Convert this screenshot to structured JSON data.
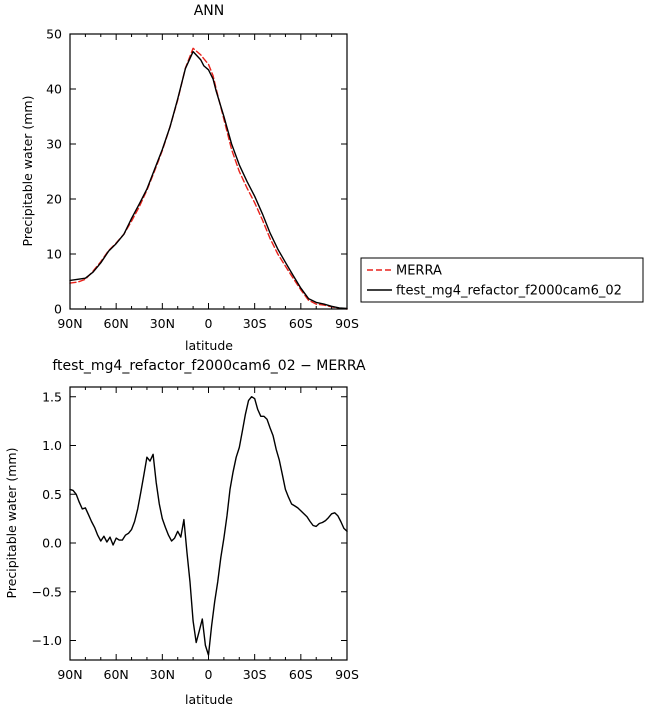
{
  "chart_data": [
    {
      "type": "line",
      "title": "ANN",
      "xlabel": "latitude",
      "ylabel": "Precipitable water (mm)",
      "x_direction": "north-to-south",
      "x_tick_labels": [
        "90N",
        "60N",
        "30N",
        "0",
        "30S",
        "60S",
        "90S"
      ],
      "x_tick_values": [
        90,
        60,
        30,
        0,
        -30,
        -60,
        -90
      ],
      "xlim": [
        90,
        -90
      ],
      "ylim": [
        0,
        50
      ],
      "y_tick_values": [
        0,
        10,
        20,
        30,
        40,
        50
      ],
      "grid": false,
      "legend_position": "right",
      "series": [
        {
          "name": "MERRA",
          "color": "#e8221b",
          "dash": "dashed",
          "x": [
            90,
            85,
            80,
            75,
            70,
            65,
            60,
            55,
            50,
            45,
            40,
            35,
            30,
            25,
            20,
            15,
            10,
            5,
            3,
            0,
            -3,
            -5,
            -10,
            -15,
            -20,
            -25,
            -30,
            -35,
            -40,
            -45,
            -50,
            -55,
            -60,
            -65,
            -70,
            -75,
            -80,
            -85,
            -90
          ],
          "y": [
            4.7,
            4.9,
            5.4,
            6.9,
            8.6,
            10.6,
            12.0,
            13.6,
            16.0,
            18.6,
            21.6,
            25.1,
            28.8,
            33.1,
            38.0,
            43.8,
            47.4,
            46.2,
            45.5,
            44.5,
            42.4,
            40.0,
            34.5,
            29.0,
            25.0,
            22.0,
            19.3,
            16.2,
            12.8,
            10.0,
            7.8,
            5.6,
            3.5,
            1.6,
            0.9,
            0.7,
            0.4,
            0.1,
            0.0
          ]
        },
        {
          "name": "ftest_mg4_refactor_f2000cam6_02",
          "color": "#000000",
          "dash": "solid",
          "x": [
            90,
            85,
            80,
            75,
            70,
            65,
            60,
            55,
            50,
            45,
            40,
            35,
            30,
            25,
            20,
            15,
            10,
            5,
            3,
            0,
            -3,
            -5,
            -10,
            -15,
            -20,
            -25,
            -30,
            -35,
            -40,
            -45,
            -50,
            -55,
            -60,
            -65,
            -70,
            -75,
            -80,
            -85,
            -90
          ],
          "y": [
            5.2,
            5.4,
            5.6,
            6.7,
            8.4,
            10.5,
            11.9,
            13.6,
            16.5,
            19.1,
            21.8,
            25.4,
            29.0,
            33.1,
            38.2,
            43.7,
            46.8,
            45.3,
            44.2,
            43.5,
            41.8,
            39.6,
            35.0,
            30.0,
            26.2,
            23.2,
            20.5,
            17.3,
            13.8,
            10.9,
            8.5,
            6.1,
            3.8,
            1.9,
            1.2,
            0.9,
            0.5,
            0.2,
            0.1
          ]
        }
      ]
    },
    {
      "type": "line",
      "title": "ftest_mg4_refactor_f2000cam6_02 − MERRA",
      "xlabel": "latitude",
      "ylabel": "Precipitable water (mm)",
      "x_direction": "north-to-south",
      "x_tick_labels": [
        "90N",
        "60N",
        "30N",
        "0",
        "30S",
        "60S",
        "90S"
      ],
      "x_tick_values": [
        90,
        60,
        30,
        0,
        -30,
        -60,
        -90
      ],
      "xlim": [
        90,
        -90
      ],
      "ylim": [
        -1.2,
        1.6
      ],
      "y_tick_values": [
        -1.0,
        -0.5,
        0.0,
        0.5,
        1.0,
        1.5
      ],
      "y_tick_labels": [
        "−1.0",
        "−0.5",
        "0.0",
        "0.5",
        "1.0",
        "1.5"
      ],
      "grid": false,
      "series": [
        {
          "color": "#000000",
          "dash": "solid",
          "x": [
            90,
            88,
            86,
            84,
            82,
            80,
            78,
            76,
            74,
            72,
            70,
            68,
            66,
            64,
            62,
            60,
            58,
            56,
            54,
            52,
            50,
            48,
            46,
            44,
            42,
            40,
            38,
            36,
            34,
            32,
            30,
            28,
            26,
            24,
            22,
            20,
            18,
            16,
            14,
            12,
            10,
            8,
            6,
            4,
            2,
            0,
            -2,
            -4,
            -6,
            -8,
            -10,
            -12,
            -14,
            -16,
            -18,
            -20,
            -22,
            -24,
            -26,
            -28,
            -30,
            -32,
            -34,
            -36,
            -38,
            -40,
            -42,
            -44,
            -46,
            -48,
            -50,
            -52,
            -54,
            -56,
            -58,
            -60,
            -62,
            -64,
            -66,
            -68,
            -70,
            -72,
            -74,
            -76,
            -78,
            -80,
            -82,
            -84,
            -86,
            -88,
            -90
          ],
          "y": [
            0.55,
            0.54,
            0.5,
            0.42,
            0.35,
            0.36,
            0.29,
            0.22,
            0.16,
            0.08,
            0.02,
            0.07,
            0.01,
            0.06,
            -0.02,
            0.05,
            0.03,
            0.03,
            0.08,
            0.1,
            0.14,
            0.22,
            0.35,
            0.52,
            0.7,
            0.88,
            0.84,
            0.91,
            0.62,
            0.4,
            0.25,
            0.16,
            0.08,
            0.02,
            0.05,
            0.12,
            0.06,
            0.24,
            -0.1,
            -0.4,
            -0.8,
            -1.02,
            -0.9,
            -0.78,
            -1.05,
            -1.15,
            -0.85,
            -0.6,
            -0.4,
            -0.15,
            0.05,
            0.28,
            0.55,
            0.73,
            0.88,
            0.98,
            1.15,
            1.32,
            1.46,
            1.5,
            1.48,
            1.37,
            1.3,
            1.3,
            1.27,
            1.18,
            1.1,
            0.96,
            0.85,
            0.7,
            0.55,
            0.47,
            0.4,
            0.38,
            0.36,
            0.33,
            0.3,
            0.27,
            0.22,
            0.18,
            0.17,
            0.2,
            0.21,
            0.23,
            0.26,
            0.3,
            0.31,
            0.28,
            0.22,
            0.15,
            0.12
          ]
        }
      ]
    }
  ]
}
